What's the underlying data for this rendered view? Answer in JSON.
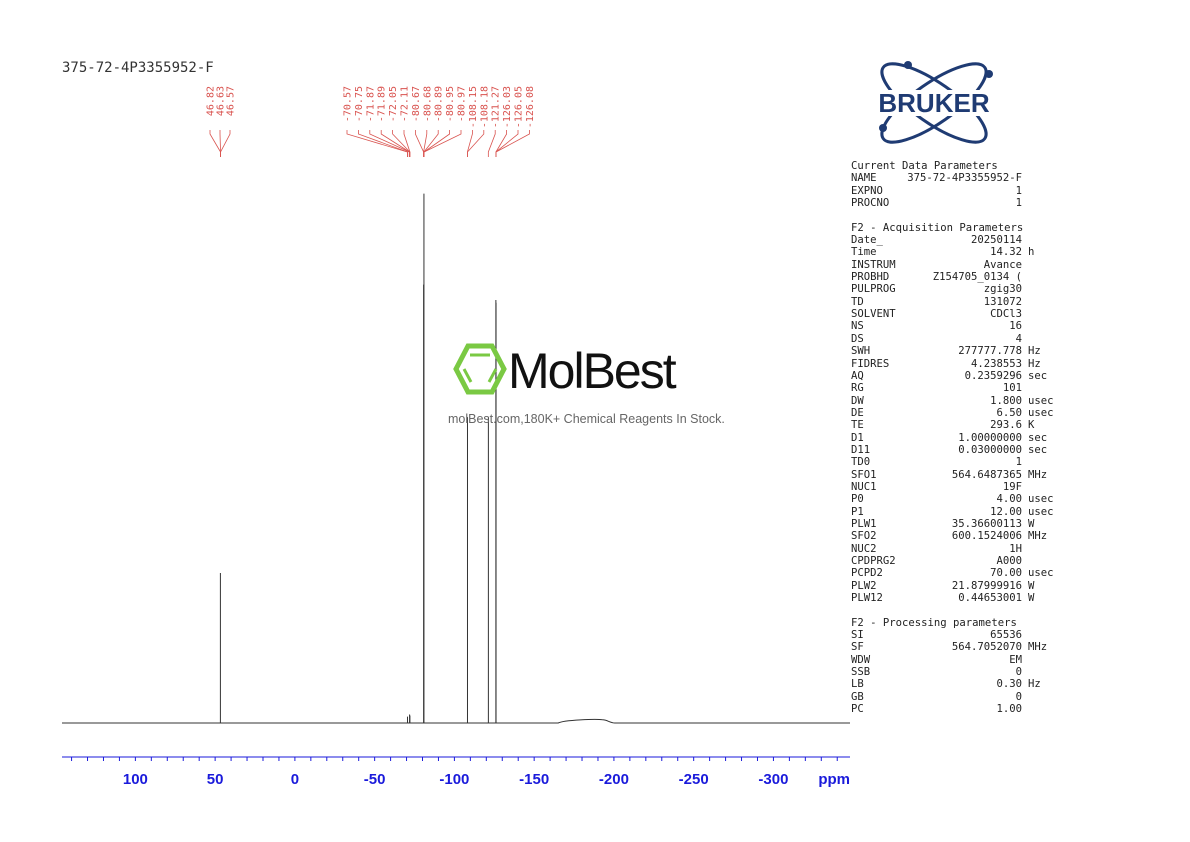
{
  "sample_name": "375-72-4P3355952-F",
  "watermark": {
    "brand": "MolBest",
    "tagline": "molBest.com,180K+ Chemical Reagents In Stock."
  },
  "logo": {
    "text": "BRUKER",
    "color": "#1f3b73"
  },
  "colors": {
    "axis": "#1a1adb",
    "peak_labels": "#d9534f",
    "spectrum": "#333333"
  },
  "parameters": {
    "current_title": "Current Data Parameters",
    "current": [
      {
        "label": "NAME",
        "value": "375-72-4P3355952-F",
        "unit": ""
      },
      {
        "label": "EXPNO",
        "value": "1",
        "unit": ""
      },
      {
        "label": "PROCNO",
        "value": "1",
        "unit": ""
      }
    ],
    "acq_title": "F2 - Acquisition Parameters",
    "acquisition": [
      {
        "label": "Date_",
        "value": "20250114",
        "unit": ""
      },
      {
        "label": "Time",
        "value": "14.32",
        "unit": "h"
      },
      {
        "label": "INSTRUM",
        "value": "Avance",
        "unit": ""
      },
      {
        "label": "PROBHD",
        "value": "Z154705_0134 (",
        "unit": ""
      },
      {
        "label": "PULPROG",
        "value": "zgig30",
        "unit": ""
      },
      {
        "label": "TD",
        "value": "131072",
        "unit": ""
      },
      {
        "label": "SOLVENT",
        "value": "CDCl3",
        "unit": ""
      },
      {
        "label": "NS",
        "value": "16",
        "unit": ""
      },
      {
        "label": "DS",
        "value": "4",
        "unit": ""
      },
      {
        "label": "SWH",
        "value": "277777.778",
        "unit": "Hz"
      },
      {
        "label": "FIDRES",
        "value": "4.238553",
        "unit": "Hz"
      },
      {
        "label": "AQ",
        "value": "0.2359296",
        "unit": "sec"
      },
      {
        "label": "RG",
        "value": "101",
        "unit": ""
      },
      {
        "label": "DW",
        "value": "1.800",
        "unit": "usec"
      },
      {
        "label": "DE",
        "value": "6.50",
        "unit": "usec"
      },
      {
        "label": "TE",
        "value": "293.6",
        "unit": "K"
      },
      {
        "label": "D1",
        "value": "1.00000000",
        "unit": "sec"
      },
      {
        "label": "D11",
        "value": "0.03000000",
        "unit": "sec"
      },
      {
        "label": "TD0",
        "value": "1",
        "unit": ""
      },
      {
        "label": "SFO1",
        "value": "564.6487365",
        "unit": "MHz"
      },
      {
        "label": "NUC1",
        "value": "19F",
        "unit": ""
      },
      {
        "label": "P0",
        "value": "4.00",
        "unit": "usec"
      },
      {
        "label": "P1",
        "value": "12.00",
        "unit": "usec"
      },
      {
        "label": "PLW1",
        "value": "35.36600113",
        "unit": "W"
      },
      {
        "label": "SFO2",
        "value": "600.1524006",
        "unit": "MHz"
      },
      {
        "label": "NUC2",
        "value": "1H",
        "unit": ""
      },
      {
        "label": "CPDPRG2",
        "value": "A000",
        "unit": ""
      },
      {
        "label": "PCPD2",
        "value": "70.00",
        "unit": "usec"
      },
      {
        "label": "PLW2",
        "value": "21.87999916",
        "unit": "W"
      },
      {
        "label": "PLW12",
        "value": "0.44653001",
        "unit": "W"
      }
    ],
    "proc_title": "F2 - Processing parameters",
    "processing": [
      {
        "label": "SI",
        "value": "65536",
        "unit": ""
      },
      {
        "label": "SF",
        "value": "564.7052070",
        "unit": "MHz"
      },
      {
        "label": "WDW",
        "value": "EM",
        "unit": ""
      },
      {
        "label": "SSB",
        "value": "0",
        "unit": ""
      },
      {
        "label": "LB",
        "value": "0.30",
        "unit": "Hz"
      },
      {
        "label": "GB",
        "value": "0",
        "unit": ""
      },
      {
        "label": "PC",
        "value": "1.00",
        "unit": ""
      }
    ]
  },
  "chart_data": {
    "type": "line",
    "xlabel": "ppm",
    "xlim": [
      146,
      -348
    ],
    "x_reversed": true,
    "ylim": [
      0,
      1
    ],
    "x_ticks": [
      100,
      50,
      0,
      -50,
      -100,
      -150,
      -200,
      -250,
      -300
    ],
    "x_tick_labels": [
      "100",
      "50",
      "0",
      "-50",
      "-100",
      "-150",
      "-200",
      "-250",
      "-300"
    ],
    "minor_tick_step": 10,
    "peak_label_groups": [
      {
        "labels": [
          "46.82",
          "46.63",
          "46.57"
        ],
        "target_ppm": 46.6
      },
      {
        "labels": [
          "-70.57",
          "-70.75",
          "-71.87",
          "-71.89",
          "-72.05",
          "-72.11",
          "-80.67",
          "-80.68",
          "-80.89",
          "-80.95",
          "-80.97",
          "-108.15",
          "-108.18",
          "-121.27",
          "-126.03",
          "-126.05",
          "-126.08"
        ],
        "targets_ppm": [
          -70.57,
          -70.75,
          -71.87,
          -71.89,
          -72.05,
          -72.11,
          -80.67,
          -80.68,
          -80.89,
          -80.95,
          -80.97,
          -108.15,
          -108.18,
          -121.27,
          -126.03,
          -126.05,
          -126.08
        ]
      }
    ],
    "peaks": [
      {
        "ppm": 46.7,
        "height": 0.282
      },
      {
        "ppm": -70.6,
        "height": 0.012
      },
      {
        "ppm": -71.9,
        "height": 0.016
      },
      {
        "ppm": -72.1,
        "height": 0.014
      },
      {
        "ppm": -80.7,
        "height": 0.824
      },
      {
        "ppm": -80.9,
        "height": 0.995
      },
      {
        "ppm": -108.2,
        "height": 0.575
      },
      {
        "ppm": -121.3,
        "height": 0.575
      },
      {
        "ppm": -126.0,
        "height": 0.795
      },
      {
        "ppm": -126.1,
        "height": 0.79
      }
    ],
    "baseline_hump": {
      "from_ppm": -165,
      "to_ppm": -198,
      "height": 0.006
    }
  }
}
